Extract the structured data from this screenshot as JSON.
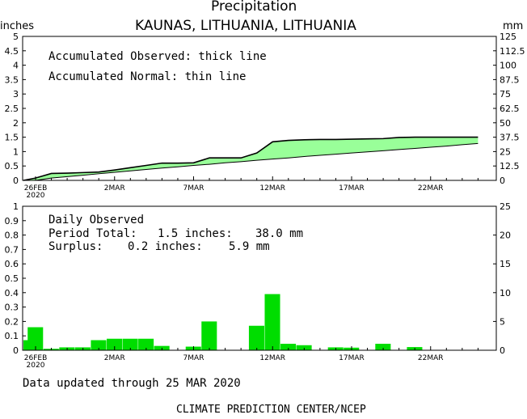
{
  "header": {
    "title": "Precipitation",
    "location": "KAUNAS, LITHUANIA, LITHUANIA",
    "unit_left": "inches",
    "unit_right": "mm"
  },
  "top_panel": {
    "legend_observed": "Accumulated Observed: thick line",
    "legend_normal": "Accumulated Normal: thin line"
  },
  "bottom_panel": {
    "heading": "Daily Observed",
    "period_label": "Period Total:",
    "period_inches": "1.5 inches:",
    "period_mm": "38.0 mm",
    "surplus_label": "Surplus:",
    "surplus_inches": "0.2 inches:",
    "surplus_mm": "5.9 mm"
  },
  "footer": {
    "updated": "Data updated through 25 MAR 2020",
    "credit": "CLIMATE PREDICTION CENTER/NCEP"
  },
  "colors": {
    "fill": "#99ff99",
    "bar": "#00dd00",
    "line": "#000000"
  },
  "chart_data": [
    {
      "type": "area",
      "title": "Precipitation",
      "ylabel_left": "inches",
      "ylabel_right": "mm",
      "x_dates": [
        "26FEB",
        "27FEB",
        "28FEB",
        "29FEB",
        "1MAR",
        "2MAR",
        "3MAR",
        "4MAR",
        "5MAR",
        "6MAR",
        "7MAR",
        "8MAR",
        "9MAR",
        "10MAR",
        "11MAR",
        "12MAR",
        "13MAR",
        "14MAR",
        "15MAR",
        "16MAR",
        "17MAR",
        "18MAR",
        "19MAR",
        "20MAR",
        "21MAR",
        "22MAR",
        "23MAR",
        "24MAR",
        "25MAR"
      ],
      "x_tick_labels": [
        "26FEB",
        "2MAR",
        "7MAR",
        "12MAR",
        "17MAR",
        "22MAR"
      ],
      "x_tick_year": "2020",
      "ylim_left": [
        0,
        5
      ],
      "ylim_right": [
        0,
        125
      ],
      "y_ticks_left": [
        "0",
        "0.5",
        "1",
        "1.5",
        "2",
        "2.5",
        "3",
        "3.5",
        "4",
        "4.5",
        "5"
      ],
      "y_ticks_right": [
        "0",
        "12.5",
        "25",
        "37.5",
        "50",
        "62.5",
        "75",
        "87.5",
        "100",
        "112.5",
        "125"
      ],
      "series": [
        {
          "name": "Accumulated Observed",
          "values": [
            0.08,
            0.24,
            0.25,
            0.27,
            0.29,
            0.36,
            0.44,
            0.52,
            0.6,
            0.6,
            0.61,
            0.78,
            0.78,
            0.78,
            0.95,
            1.34,
            1.39,
            1.41,
            1.42,
            1.42,
            1.43,
            1.44,
            1.45,
            1.49,
            1.5,
            1.5,
            1.5,
            1.5,
            1.5
          ]
        },
        {
          "name": "Accumulated Normal",
          "values": [
            0.0,
            0.08,
            0.13,
            0.18,
            0.23,
            0.28,
            0.33,
            0.38,
            0.43,
            0.47,
            0.52,
            0.56,
            0.61,
            0.65,
            0.7,
            0.74,
            0.78,
            0.83,
            0.87,
            0.91,
            0.95,
            0.99,
            1.03,
            1.07,
            1.11,
            1.15,
            1.19,
            1.24,
            1.28
          ]
        }
      ],
      "grid": false,
      "legend": "top-left"
    },
    {
      "type": "bar",
      "title": "Daily Observed",
      "x_dates": [
        "26FEB",
        "27FEB",
        "28FEB",
        "29FEB",
        "1MAR",
        "2MAR",
        "3MAR",
        "4MAR",
        "5MAR",
        "6MAR",
        "7MAR",
        "8MAR",
        "9MAR",
        "10MAR",
        "11MAR",
        "12MAR",
        "13MAR",
        "14MAR",
        "15MAR",
        "16MAR",
        "17MAR",
        "18MAR",
        "19MAR",
        "20MAR",
        "21MAR",
        "22MAR",
        "23MAR",
        "24MAR",
        "25MAR"
      ],
      "x_tick_labels": [
        "26FEB",
        "2MAR",
        "7MAR",
        "12MAR",
        "17MAR",
        "22MAR"
      ],
      "x_tick_year": "2020",
      "values": [
        0.16,
        0.01,
        0.02,
        0.02,
        0.07,
        0.08,
        0.08,
        0.08,
        0.03,
        0.0,
        0.025,
        0.2,
        0.0,
        0.0,
        0.17,
        0.39,
        0.045,
        0.035,
        0.0,
        0.02,
        0.018,
        0.0,
        0.045,
        0.0,
        0.022,
        0.0,
        0.0,
        0.0,
        0.0
      ],
      "first_day_partial_value": 0.07,
      "ylim_left": [
        0,
        1
      ],
      "ylim_right": [
        0,
        25
      ],
      "y_ticks_left": [
        "0",
        "0.1",
        "0.2",
        "0.3",
        "0.4",
        "0.5",
        "0.6",
        "0.7",
        "0.8",
        "0.9",
        "1"
      ],
      "y_ticks_right": [
        "0",
        "5",
        "10",
        "15",
        "20",
        "25"
      ],
      "grid": false
    }
  ]
}
